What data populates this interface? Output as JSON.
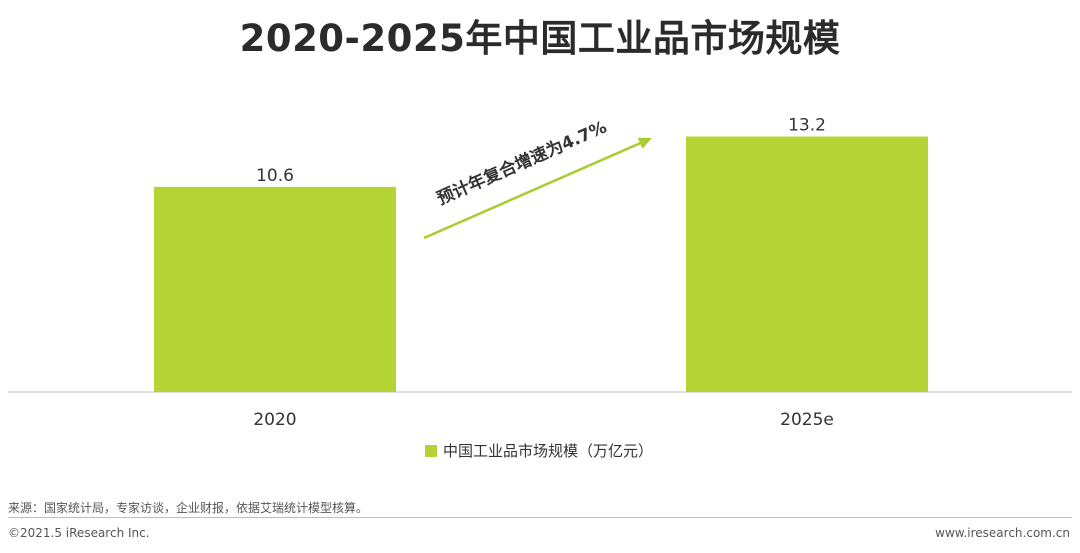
{
  "colors": {
    "bar": "#b5d334",
    "arrow": "#a9cc2e",
    "axis": "#bfbfbf",
    "text": "#333333"
  },
  "source_text": "来源：国家统计局，专家访谈，企业财报，依据艾瑞统计模型核算。",
  "footer": {
    "copyright": "©2021.5 iResearch Inc.",
    "website": "www.iresearch.com.cn"
  },
  "chart_data": {
    "type": "bar",
    "title": "2020-2025年中国工业品市场规模",
    "categories": [
      "2020",
      "2025e"
    ],
    "series": [
      {
        "name": "中国工业品市场规模（万亿元）",
        "values": [
          10.6,
          13.2
        ]
      }
    ],
    "data_labels": [
      "10.6",
      "13.2"
    ],
    "annotation": "预计年复合增速为4.7%",
    "ylim": [
      0,
      18.6
    ],
    "legend": "bottom-center",
    "grid": false
  }
}
